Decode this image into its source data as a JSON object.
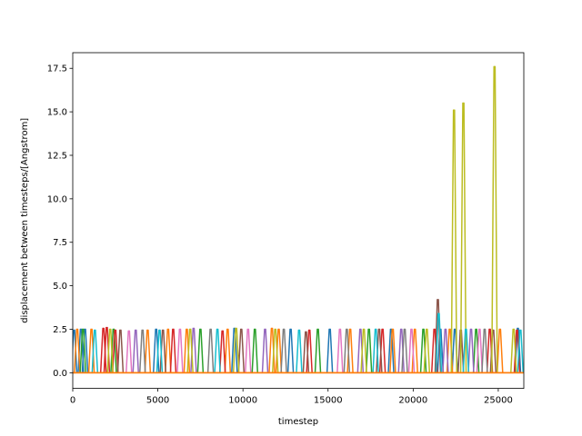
{
  "chart_data": {
    "type": "line",
    "title": "",
    "xlabel": "timestep",
    "ylabel": "displacement between timesteps/[Angstrom]",
    "xlim": [
      0,
      26500
    ],
    "ylim": [
      -0.9,
      18.4
    ],
    "xticks": [
      0,
      5000,
      10000,
      15000,
      20000,
      25000
    ],
    "xtick_labels": [
      "0",
      "5000",
      "10000",
      "15000",
      "20000",
      "25000"
    ],
    "yticks": [
      0.0,
      2.5,
      5.0,
      7.5,
      10.0,
      12.5,
      15.0,
      17.5
    ],
    "ytick_labels": [
      "0.0",
      "2.5",
      "5.0",
      "7.5",
      "10.0",
      "12.5",
      "15.0",
      "17.5"
    ],
    "grid": false,
    "legend": "none",
    "baseline": 0.0,
    "series": [
      {
        "color": "#1f77b4",
        "points": [
          [
            0,
            0
          ],
          [
            80,
            2.45
          ],
          [
            480,
            2.5
          ],
          [
            720,
            2.5
          ],
          [
            4900,
            2.5
          ],
          [
            9500,
            2.55
          ],
          [
            12800,
            2.5
          ],
          [
            15100,
            2.5
          ],
          [
            18700,
            2.5
          ],
          [
            21600,
            2.5
          ],
          [
            22450,
            2.5
          ],
          [
            26150,
            2.55
          ]
        ]
      },
      {
        "color": "#ff7f0e",
        "points": [
          [
            260,
            2.5
          ],
          [
            1100,
            2.5
          ],
          [
            4400,
            2.45
          ],
          [
            5600,
            2.5
          ],
          [
            6700,
            2.5
          ],
          [
            9100,
            2.5
          ],
          [
            11700,
            2.55
          ],
          [
            12100,
            2.5
          ],
          [
            16300,
            2.5
          ],
          [
            18800,
            2.5
          ],
          [
            20100,
            2.5
          ],
          [
            22150,
            2.5
          ],
          [
            25100,
            2.5
          ]
        ]
      },
      {
        "color": "#2ca02c",
        "points": [
          [
            600,
            2.5
          ],
          [
            2400,
            2.5
          ],
          [
            7500,
            2.5
          ],
          [
            10700,
            2.5
          ],
          [
            14400,
            2.5
          ],
          [
            17400,
            2.5
          ],
          [
            20600,
            2.5
          ],
          [
            23700,
            2.5
          ]
        ]
      },
      {
        "color": "#d62728",
        "points": [
          [
            1800,
            2.55
          ],
          [
            2000,
            2.6
          ],
          [
            2500,
            2.45
          ],
          [
            5900,
            2.5
          ],
          [
            8800,
            2.4
          ],
          [
            13900,
            2.45
          ],
          [
            18200,
            2.5
          ],
          [
            21250,
            2.5
          ],
          [
            24500,
            2.5
          ],
          [
            26100,
            2.45
          ]
        ]
      },
      {
        "color": "#9467bd",
        "points": [
          [
            3700,
            2.45
          ],
          [
            7100,
            2.55
          ],
          [
            11300,
            2.5
          ],
          [
            16900,
            2.5
          ],
          [
            19300,
            2.5
          ],
          [
            21900,
            2.5
          ],
          [
            23400,
            2.5
          ]
        ]
      },
      {
        "color": "#8c564b",
        "points": [
          [
            2800,
            2.45
          ],
          [
            5300,
            2.45
          ],
          [
            9900,
            2.5
          ],
          [
            13700,
            2.35
          ],
          [
            18000,
            2.5
          ],
          [
            21450,
            4.2
          ],
          [
            22800,
            2.45
          ],
          [
            24700,
            2.45
          ]
        ]
      },
      {
        "color": "#e377c2",
        "points": [
          [
            3300,
            2.4
          ],
          [
            6300,
            2.5
          ],
          [
            10300,
            2.5
          ],
          [
            15700,
            2.5
          ],
          [
            19900,
            2.5
          ],
          [
            23900,
            2.5
          ]
        ]
      },
      {
        "color": "#7f7f7f",
        "points": [
          [
            4100,
            2.45
          ],
          [
            8100,
            2.5
          ],
          [
            12400,
            2.5
          ],
          [
            16100,
            2.5
          ],
          [
            19500,
            2.5
          ],
          [
            24200,
            2.5
          ]
        ]
      },
      {
        "color": "#bcbd22",
        "points": [
          [
            2200,
            2.5
          ],
          [
            6900,
            2.5
          ],
          [
            9600,
            2.55
          ],
          [
            11900,
            2.5
          ],
          [
            17100,
            2.5
          ],
          [
            20800,
            2.5
          ],
          [
            22400,
            15.1
          ],
          [
            22950,
            15.5
          ],
          [
            24780,
            17.6
          ],
          [
            25900,
            2.5
          ]
        ]
      },
      {
        "color": "#17becf",
        "points": [
          [
            1300,
            2.45
          ],
          [
            5100,
            2.45
          ],
          [
            8500,
            2.5
          ],
          [
            13300,
            2.45
          ],
          [
            17800,
            2.5
          ],
          [
            21500,
            3.4
          ],
          [
            23100,
            2.5
          ],
          [
            26300,
            2.45
          ]
        ]
      }
    ]
  }
}
